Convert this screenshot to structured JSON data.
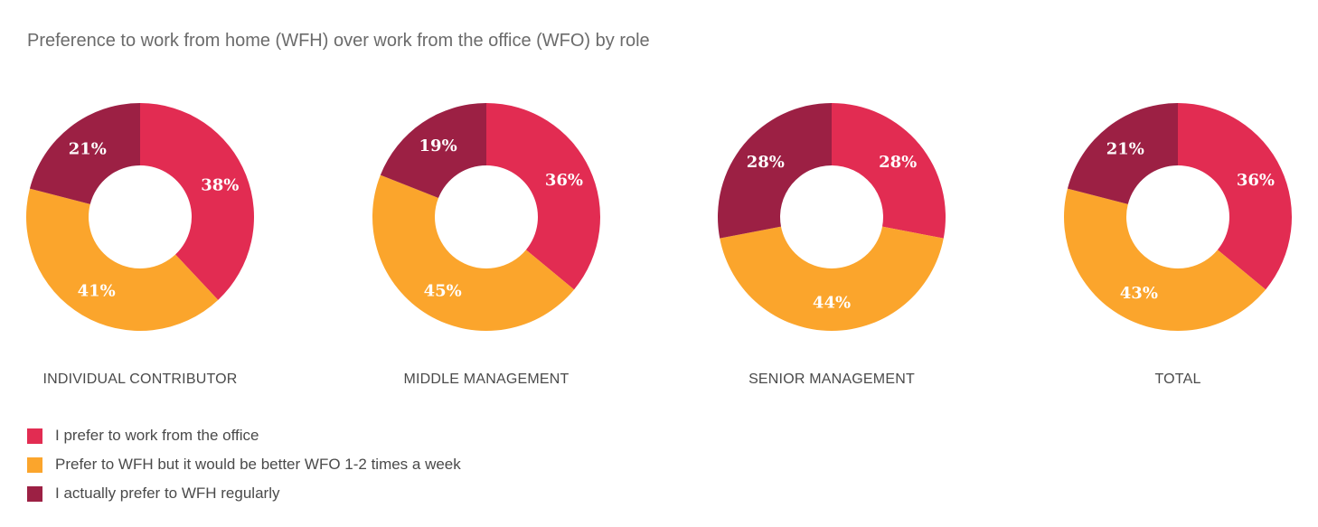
{
  "colors": {
    "office": "#e22c52",
    "hybrid": "#fba52c",
    "wfh": "#9c2044"
  },
  "chart_data": {
    "type": "donut",
    "title": "Preference to work from home (WFH) over work from the office (WFO) by role",
    "legend_position": "bottom-left",
    "series_names": [
      "I prefer to work from the office",
      "Prefer to WFH but it would be better WFO 1-2 times a week",
      "I actually prefer to WFH regularly"
    ],
    "series_keys": [
      "office",
      "hybrid",
      "wfh"
    ],
    "groups": [
      {
        "name": "INDIVIDUAL CONTRIBUTOR",
        "values": [
          38,
          41,
          21
        ],
        "labels": [
          "38%",
          "41%",
          "21%"
        ]
      },
      {
        "name": "MIDDLE MANAGEMENT",
        "values": [
          36,
          45,
          19
        ],
        "labels": [
          "36%",
          "45%",
          "19%"
        ]
      },
      {
        "name": "SENIOR MANAGEMENT",
        "values": [
          28,
          44,
          28
        ],
        "labels": [
          "28%",
          "44%",
          "28%"
        ]
      },
      {
        "name": "TOTAL",
        "values": [
          36,
          43,
          21
        ],
        "labels": [
          "36%",
          "43%",
          "21%"
        ]
      }
    ]
  }
}
